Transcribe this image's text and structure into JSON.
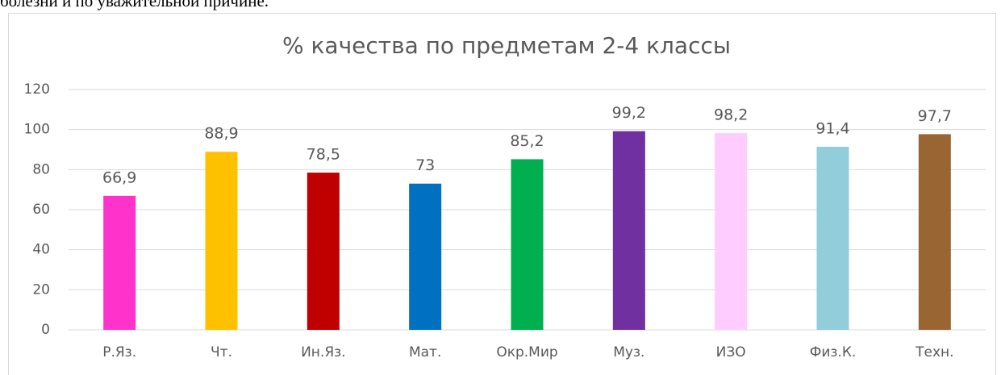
{
  "header_text": "болезни и по уважительной причине.",
  "chart_data": {
    "type": "bar",
    "title": "% качества по предметам  2-4 классы",
    "categories": [
      "Р.Яз.",
      "Чт.",
      "Ин.Яз.",
      "Мат.",
      "Окр.Мир",
      "Муз.",
      "ИЗО",
      "Физ.К.",
      "Техн."
    ],
    "values": [
      66.9,
      88.9,
      78.5,
      73,
      85.2,
      99.2,
      98.2,
      91.4,
      97.7
    ],
    "value_labels": [
      "66,9",
      "88,9",
      "78,5",
      "73",
      "85,2",
      "99,2",
      "98,2",
      "91,4",
      "97,7"
    ],
    "colors": [
      "#FF33CC",
      "#FFC000",
      "#C00000",
      "#0070C0",
      "#00B050",
      "#7030A0",
      "#FFCCFF",
      "#92CDDC",
      "#996633"
    ],
    "ylim": [
      0,
      120
    ],
    "yticks": [
      0,
      20,
      40,
      60,
      80,
      100,
      120
    ],
    "grid": true
  }
}
